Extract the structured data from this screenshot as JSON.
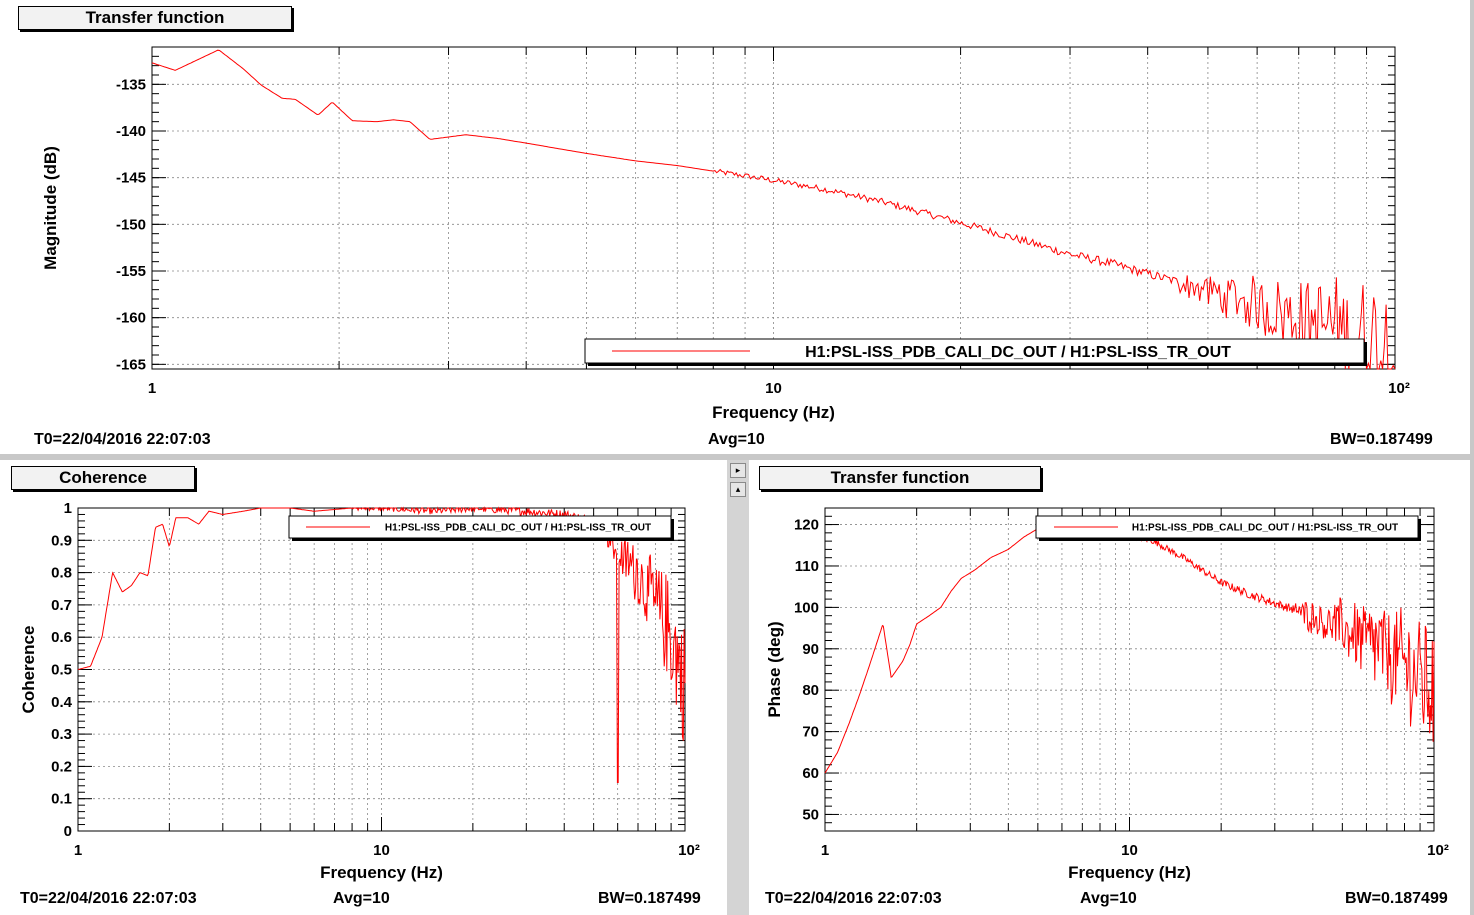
{
  "panels": {
    "top": {
      "title": "Transfer function",
      "footer": {
        "t0": "T0=22/04/2016 22:07:03",
        "avg": "Avg=10",
        "bw": "BW=0.187499"
      }
    },
    "left": {
      "title": "Coherence",
      "footer": {
        "t0": "T0=22/04/2016 22:07:03",
        "avg": "Avg=10",
        "bw": "BW=0.187499"
      }
    },
    "right": {
      "title": "Transfer function",
      "footer": {
        "t0": "T0=22/04/2016 22:07:03",
        "avg": "Avg=10",
        "bw": "BW=0.187499"
      }
    }
  },
  "splitter": {
    "arrow_right": "▸",
    "arrow_up": "▴"
  },
  "colors": {
    "trace": "#ff0000",
    "grid": "#888888",
    "axes": "#000000",
    "legend_shadow": "#000000"
  },
  "chart_data": [
    {
      "id": "magnitude",
      "type": "line",
      "title": "Transfer function",
      "xlabel": "Frequency (Hz)",
      "ylabel": "Magnitude (dB)",
      "xscale": "log",
      "xlim": [
        1,
        100
      ],
      "ylim": [
        -165.5,
        -131
      ],
      "x_ticks": [
        1,
        10,
        100
      ],
      "x_tick_labels": [
        "1",
        "10",
        "10²"
      ],
      "y_ticks": [
        -135,
        -140,
        -145,
        -150,
        -155,
        -160,
        -165
      ],
      "y_tick_labels": [
        "-135",
        "-140",
        "-145",
        "-150",
        "-155",
        "-160",
        "-165"
      ],
      "grid": true,
      "legend": {
        "position": "bottom-right",
        "entries": [
          "H1:PSL-ISS_PDB_CALI_DC_OUT / H1:PSL-ISS_TR_OUT"
        ]
      },
      "series": [
        {
          "name": "H1:PSL-ISS_PDB_CALI_DC_OUT / H1:PSL-ISS_TR_OUT",
          "color": "#ff0000",
          "x": [
            1,
            1.09,
            1.19,
            1.28,
            1.4,
            1.5,
            1.62,
            1.7,
            1.85,
            1.95,
            2.1,
            2.3,
            2.45,
            2.6,
            2.8,
            3.2,
            3.6,
            4,
            5,
            6,
            7,
            8,
            9,
            10,
            12,
            15,
            18,
            22,
            26,
            30,
            35,
            40,
            45,
            50,
            55,
            60,
            65,
            70,
            75,
            80,
            85,
            90,
            95,
            100
          ],
          "y": [
            -132.7,
            -133.5,
            -132.3,
            -131.3,
            -133.3,
            -135.1,
            -136.5,
            -136.6,
            -138.3,
            -136.9,
            -138.9,
            -139,
            -138.8,
            -139,
            -140.9,
            -140.4,
            -140.8,
            -141.3,
            -142.4,
            -143.2,
            -143.7,
            -144.3,
            -144.8,
            -145.3,
            -146.2,
            -147.6,
            -149,
            -150.6,
            -152,
            -153.2,
            -154.2,
            -155.3,
            -156.2,
            -157.2,
            -157.9,
            -158.6,
            -159.2,
            -160,
            -160.5,
            -161,
            -161.5,
            -162,
            -162.4,
            -162.8
          ],
          "noise_from_x": 45
        }
      ]
    },
    {
      "id": "coherence",
      "type": "line",
      "title": "Coherence",
      "xlabel": "Frequency (Hz)",
      "ylabel": "Coherence",
      "xscale": "log",
      "xlim": [
        1,
        100
      ],
      "ylim": [
        0,
        1
      ],
      "x_ticks": [
        1,
        10,
        100
      ],
      "x_tick_labels": [
        "1",
        "10",
        "10²"
      ],
      "y_ticks": [
        0,
        0.1,
        0.2,
        0.3,
        0.4,
        0.5,
        0.6,
        0.7,
        0.8,
        0.9,
        1
      ],
      "y_tick_labels": [
        "0",
        "0.1",
        "0.2",
        "0.3",
        "0.4",
        "0.5",
        "0.6",
        "0.7",
        "0.8",
        "0.9",
        "1"
      ],
      "grid": true,
      "legend": {
        "position": "top-right",
        "entries": [
          "H1:PSL-ISS_PDB_CALI_DC_OUT / H1:PSL-ISS_TR_OUT"
        ]
      },
      "series": [
        {
          "name": "H1:PSL-ISS_PDB_CALI_DC_OUT / H1:PSL-ISS_TR_OUT",
          "color": "#ff0000",
          "x": [
            1,
            1.1,
            1.2,
            1.3,
            1.4,
            1.5,
            1.6,
            1.7,
            1.8,
            1.9,
            2,
            2.1,
            2.3,
            2.5,
            2.7,
            3,
            3.5,
            4,
            5,
            6,
            8,
            10,
            15,
            20,
            30,
            40,
            50,
            55,
            60,
            70,
            80,
            90,
            100
          ],
          "y": [
            0.5,
            0.51,
            0.6,
            0.8,
            0.74,
            0.76,
            0.8,
            0.79,
            0.94,
            0.95,
            0.88,
            0.97,
            0.97,
            0.95,
            0.99,
            0.98,
            0.99,
            1,
            1,
            0.99,
            1,
            1,
            0.99,
            1,
            0.99,
            0.98,
            0.96,
            0.92,
            0.86,
            0.8,
            0.7,
            0.6,
            0.45
          ],
          "noise_from_x": 55,
          "dip": {
            "x": 60,
            "y": 0.15
          }
        }
      ]
    },
    {
      "id": "phase",
      "type": "line",
      "title": "Transfer function",
      "xlabel": "Frequency (Hz)",
      "ylabel": "Phase (deg)",
      "xscale": "log",
      "xlim": [
        1,
        100
      ],
      "ylim": [
        46,
        124
      ],
      "x_ticks": [
        1,
        10,
        100
      ],
      "x_tick_labels": [
        "1",
        "10",
        "10²"
      ],
      "y_ticks": [
        50,
        60,
        70,
        80,
        90,
        100,
        110,
        120
      ],
      "y_tick_labels": [
        "50",
        "60",
        "70",
        "80",
        "90",
        "100",
        "110",
        "120"
      ],
      "grid": true,
      "legend": {
        "position": "top-right",
        "entries": [
          "H1:PSL-ISS_PDB_CALI_DC_OUT / H1:PSL-ISS_TR_OUT"
        ]
      },
      "series": [
        {
          "name": "H1:PSL-ISS_PDB_CALI_DC_OUT / H1:PSL-ISS_TR_OUT",
          "color": "#ff0000",
          "x": [
            1,
            1.1,
            1.2,
            1.3,
            1.4,
            1.55,
            1.65,
            1.8,
            1.9,
            2,
            2.2,
            2.4,
            2.6,
            2.8,
            3.1,
            3.5,
            4,
            4.5,
            5,
            6,
            7,
            8,
            10,
            12,
            15,
            20,
            25,
            30,
            40,
            50,
            60,
            70,
            80,
            90,
            100
          ],
          "y": [
            60,
            65,
            72,
            79,
            86,
            96,
            83,
            87,
            91,
            96,
            98,
            100,
            104,
            107,
            109,
            112,
            114,
            117,
            119,
            119.5,
            119,
            118.5,
            117.5,
            116,
            112,
            106,
            103,
            101,
            98,
            95,
            92,
            89,
            86,
            83,
            80
          ],
          "noise_from_x": 35
        }
      ]
    }
  ]
}
